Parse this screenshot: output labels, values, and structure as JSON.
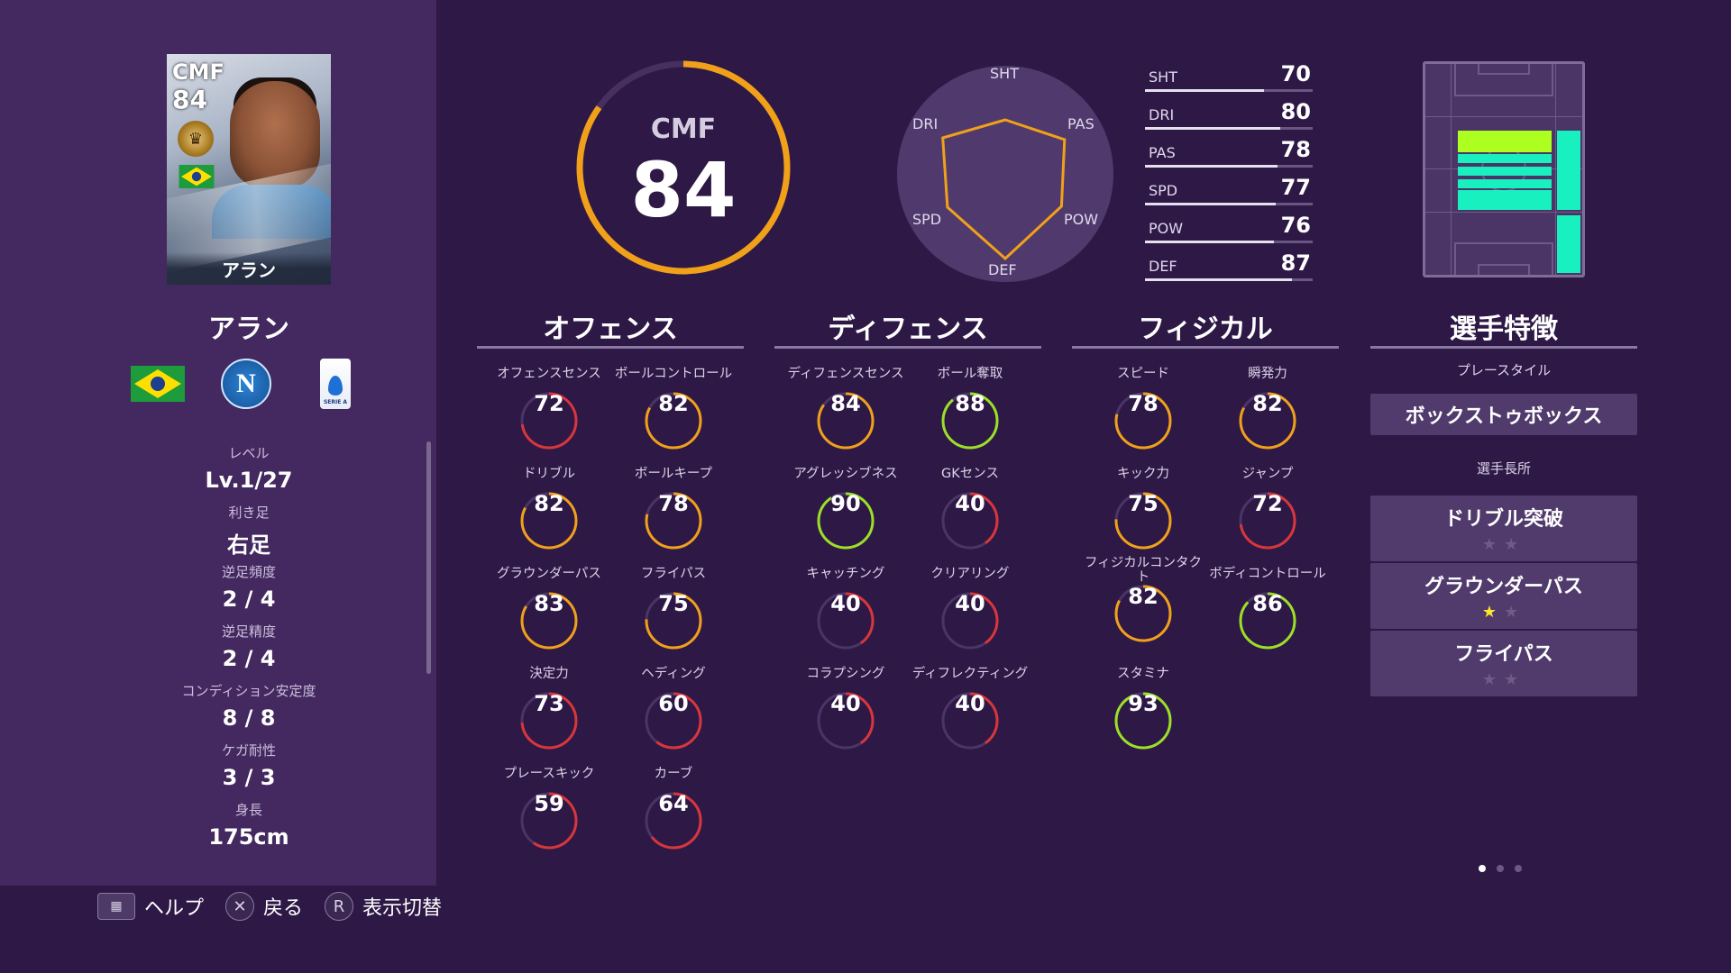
{
  "player": {
    "card_position": "CMF",
    "card_rating": "84",
    "card_name": "アラン",
    "name": "アラン"
  },
  "info": [
    {
      "label": "レベル",
      "value": "Lv.1/27"
    },
    {
      "label": "利き足",
      "value": "右足"
    },
    {
      "label": "逆足頻度",
      "value": "2 / 4"
    },
    {
      "label": "逆足精度",
      "value": "2 / 4"
    },
    {
      "label": "コンディション安定度",
      "value": "8 / 8"
    },
    {
      "label": "ケガ耐性",
      "value": "3 / 3"
    },
    {
      "label": "身長",
      "value": "175cm"
    }
  ],
  "club_crest_letter": "N",
  "league_crest_text": "SERIE A",
  "overall": {
    "position": "CMF",
    "rating": "84"
  },
  "radar": {
    "labels": [
      "SHT",
      "PAS",
      "POW",
      "DEF",
      "SPD",
      "DRI"
    ],
    "values": [
      70,
      78,
      76,
      87,
      77,
      80
    ]
  },
  "summary_bars": [
    {
      "label": "SHT",
      "value": "70"
    },
    {
      "label": "DRI",
      "value": "80"
    },
    {
      "label": "PAS",
      "value": "78"
    },
    {
      "label": "SPD",
      "value": "77"
    },
    {
      "label": "POW",
      "value": "76"
    },
    {
      "label": "DEF",
      "value": "87"
    }
  ],
  "sections": {
    "offense": {
      "title": "オフェンス",
      "stats": [
        {
          "label": "オフェンスセンス",
          "value": "72"
        },
        {
          "label": "ボールコントロール",
          "value": "82"
        },
        {
          "label": "ドリブル",
          "value": "82"
        },
        {
          "label": "ボールキープ",
          "value": "78"
        },
        {
          "label": "グラウンダーパス",
          "value": "83"
        },
        {
          "label": "フライパス",
          "value": "75"
        },
        {
          "label": "決定力",
          "value": "73"
        },
        {
          "label": "ヘディング",
          "value": "60"
        },
        {
          "label": "プレースキック",
          "value": "59"
        },
        {
          "label": "カーブ",
          "value": "64"
        }
      ]
    },
    "defense": {
      "title": "ディフェンス",
      "stats": [
        {
          "label": "ディフェンスセンス",
          "value": "84"
        },
        {
          "label": "ボール奪取",
          "value": "88"
        },
        {
          "label": "アグレッシブネス",
          "value": "90"
        },
        {
          "label": "GKセンス",
          "value": "40"
        },
        {
          "label": "キャッチング",
          "value": "40"
        },
        {
          "label": "クリアリング",
          "value": "40"
        },
        {
          "label": "コラプシング",
          "value": "40"
        },
        {
          "label": "ディフレクティング",
          "value": "40"
        }
      ]
    },
    "physical": {
      "title": "フィジカル",
      "stats": [
        {
          "label": "スピード",
          "value": "78"
        },
        {
          "label": "瞬発力",
          "value": "82"
        },
        {
          "label": "キック力",
          "value": "75"
        },
        {
          "label": "ジャンプ",
          "value": "72"
        },
        {
          "label": "フィジカルコンタクト",
          "value": "82"
        },
        {
          "label": "ボディコントロール",
          "value": "86"
        },
        {
          "label": "スタミナ",
          "value": "93"
        }
      ]
    },
    "traits": {
      "title": "選手特徴",
      "playstyle_label": "プレースタイル",
      "playstyle": "ボックストゥボックス",
      "strengths_label": "選手長所",
      "strengths": [
        {
          "name": "ドリブル突破",
          "stars": 0
        },
        {
          "name": "グラウンダーパス",
          "stars": 1
        },
        {
          "name": "フライパス",
          "stars": 0
        }
      ]
    }
  },
  "help": {
    "help_label": "ヘルプ",
    "back_label": "戻る",
    "toggle_label": "表示切替",
    "back_button": "✕",
    "toggle_button": "R"
  },
  "colors": {
    "ring_red": "#d8363a",
    "ring_orange": "#f0a019",
    "ring_green": "#9be025",
    "overall_ring": "#f0a019",
    "position_fill": "#adff1f",
    "position_fill_secondary": "#19f0c0"
  }
}
